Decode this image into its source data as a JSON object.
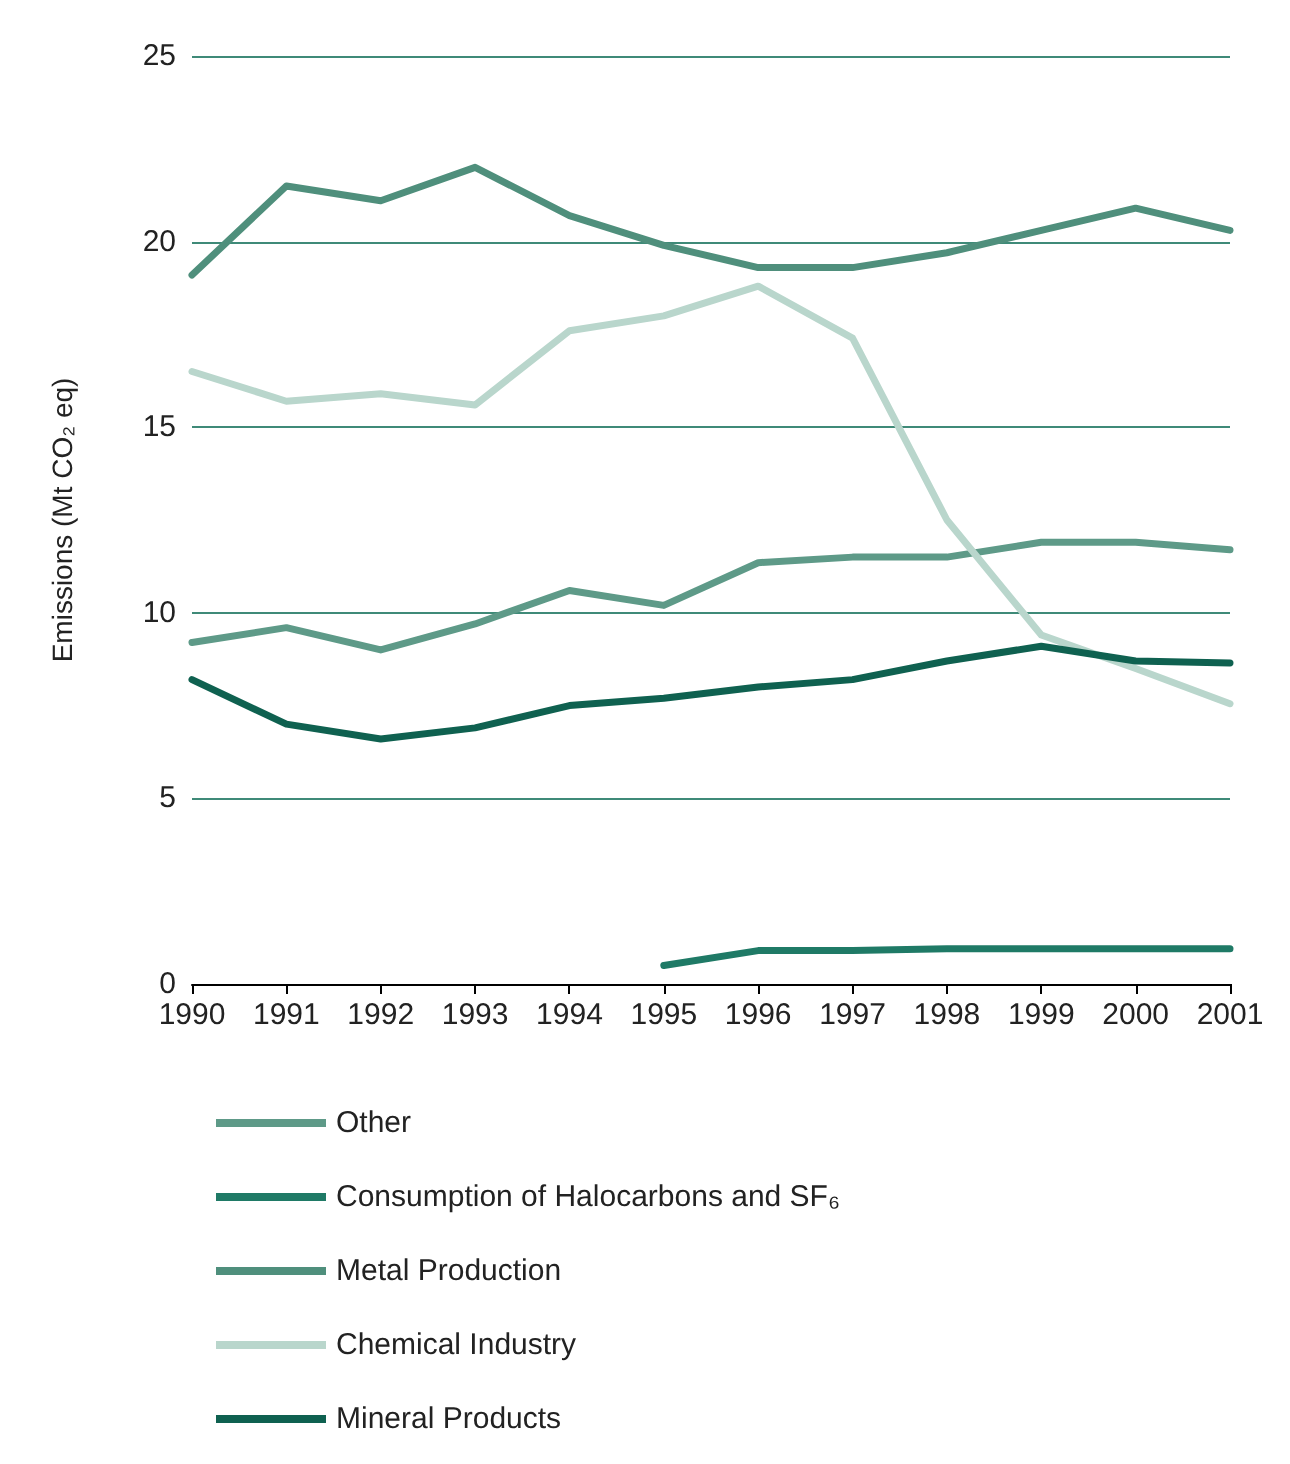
{
  "chart_data": {
    "type": "line",
    "ylabel": "Emissions (Mt CO₂ eq)",
    "categories": [
      "1990",
      "1991",
      "1992",
      "1993",
      "1994",
      "1995",
      "1996",
      "1997",
      "1998",
      "1999",
      "2000",
      "2001"
    ],
    "series": [
      {
        "name": "Other",
        "color": "#5e9a88",
        "values": [
          9.2,
          9.6,
          9.0,
          9.7,
          10.6,
          10.2,
          11.35,
          11.5,
          11.5,
          11.9,
          11.9,
          11.7
        ]
      },
      {
        "name": "Consumption of Halocarbons and SF₆",
        "color": "#1f7a66",
        "values": [
          null,
          null,
          null,
          null,
          null,
          0.5,
          0.9,
          0.9,
          0.95,
          0.95,
          0.95,
          0.95
        ]
      },
      {
        "name": "Metal Production",
        "color": "#4f8f7c",
        "values": [
          19.1,
          21.5,
          21.1,
          22.0,
          20.7,
          19.9,
          19.3,
          19.3,
          19.7,
          20.3,
          20.9,
          20.3
        ]
      },
      {
        "name": "Chemical Industry",
        "color": "#b9d6cc",
        "values": [
          16.5,
          15.7,
          15.9,
          15.6,
          17.6,
          18.0,
          18.8,
          17.4,
          12.5,
          9.4,
          8.5,
          7.55
        ]
      },
      {
        "name": "Mineral Products",
        "color": "#0f6150",
        "values": [
          8.2,
          7.0,
          6.6,
          6.9,
          7.5,
          7.7,
          8.0,
          8.2,
          8.7,
          9.1,
          8.7,
          8.65
        ]
      }
    ],
    "ylim": [
      0,
      25
    ],
    "yticks": [
      0,
      5,
      10,
      15,
      20,
      25
    ],
    "grid": "y",
    "legend": "bottom",
    "marker": "none",
    "line_style": "solid"
  }
}
